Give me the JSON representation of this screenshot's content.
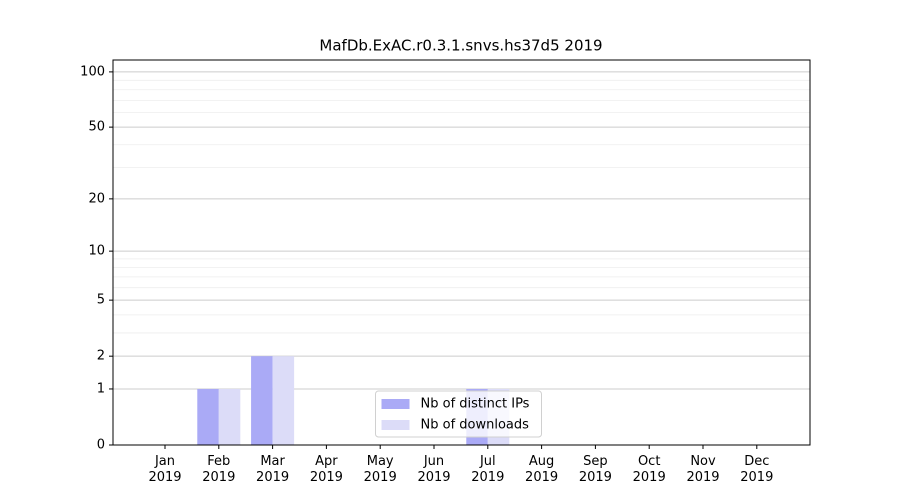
{
  "chart_data": {
    "type": "bar",
    "title": "MafDb.ExAC.r0.3.1.snvs.hs37d5 2019",
    "categories": [
      "Jan 2019",
      "Feb 2019",
      "Mar 2019",
      "Apr 2019",
      "May 2019",
      "Jun 2019",
      "Jul 2019",
      "Aug 2019",
      "Sep 2019",
      "Oct 2019",
      "Nov 2019",
      "Dec 2019"
    ],
    "series": [
      {
        "name": "Nb of distinct IPs",
        "color": "#aaaaf6",
        "values": [
          0,
          1,
          2,
          0,
          0,
          0,
          1,
          0,
          0,
          0,
          0,
          0
        ]
      },
      {
        "name": "Nb of downloads",
        "color": "#dcdcf8",
        "values": [
          0,
          1,
          2,
          0,
          0,
          0,
          1,
          0,
          0,
          0,
          0,
          0
        ]
      }
    ],
    "yscale": "log1p",
    "ylim": [
      0,
      116
    ],
    "yticks": [
      0,
      1,
      2,
      5,
      10,
      20,
      50,
      100
    ],
    "minor_yticks": [
      3,
      4,
      6,
      7,
      8,
      9,
      30,
      40,
      60,
      70,
      80,
      90
    ],
    "grid": true,
    "legend": "lower center"
  }
}
